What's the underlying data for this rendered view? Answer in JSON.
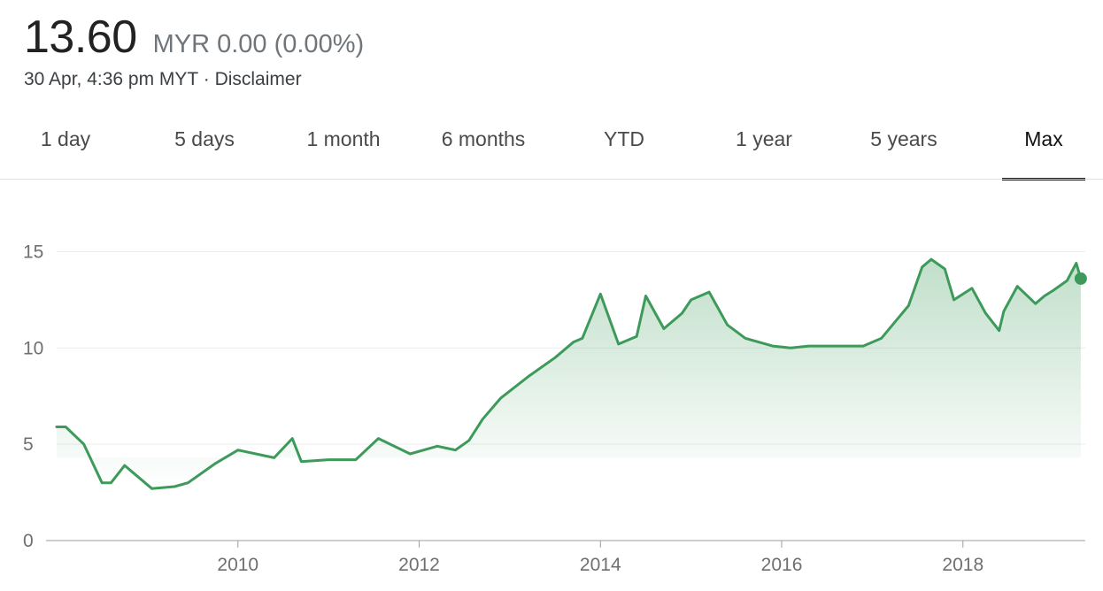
{
  "quote": {
    "price": "13.60",
    "currency": "MYR",
    "change": "0.00 (0.00%)",
    "timestamp": "30 Apr, 4:36 pm MYT · ",
    "disclaimer": "Disclaimer"
  },
  "tabs": [
    {
      "label": "1 day",
      "active": false
    },
    {
      "label": "5 days",
      "active": false
    },
    {
      "label": "1 month",
      "active": false
    },
    {
      "label": "6 months",
      "active": false
    },
    {
      "label": "YTD",
      "active": false
    },
    {
      "label": "1 year",
      "active": false
    },
    {
      "label": "5 years",
      "active": false
    },
    {
      "label": "Max",
      "active": true
    }
  ],
  "colors": {
    "line": "#3d9a5a",
    "area": "#3d9a5a",
    "grid": "#ececec",
    "axis": "#9e9e9e"
  },
  "chart_data": {
    "type": "area",
    "title": "",
    "xlabel": "",
    "ylabel": "",
    "x_ticks": [
      "2010",
      "2012",
      "2014",
      "2016",
      "2018"
    ],
    "y_ticks": [
      "0",
      "5",
      "10",
      "15"
    ],
    "xlim": [
      2008.0,
      2019.35
    ],
    "ylim": [
      0,
      17.5
    ],
    "grid": true,
    "series": [
      {
        "x": [
          2008.0,
          2008.1,
          2008.3,
          2008.5,
          2008.6,
          2008.75,
          2008.85,
          2009.05,
          2009.3,
          2009.45,
          2009.75,
          2010.0,
          2010.4,
          2010.6,
          2010.7,
          2011.0,
          2011.3,
          2011.55,
          2011.9,
          2012.2,
          2012.3,
          2012.4,
          2012.55,
          2012.7,
          2012.9,
          2013.2,
          2013.5,
          2013.7,
          2013.8,
          2014.0,
          2014.2,
          2014.4,
          2014.5,
          2014.7,
          2014.9,
          2015.0,
          2015.2,
          2015.4,
          2015.6,
          2015.9,
          2016.1,
          2016.3,
          2016.6,
          2016.9,
          2017.1,
          2017.4,
          2017.55,
          2017.65,
          2017.8,
          2017.9,
          2018.1,
          2018.25,
          2018.4,
          2018.45,
          2018.6,
          2018.8,
          2018.9,
          2019.0,
          2019.15,
          2019.25,
          2019.3
        ],
        "y": [
          5.9,
          5.9,
          5.0,
          3.0,
          3.0,
          3.9,
          3.5,
          2.7,
          2.8,
          3.0,
          4.0,
          4.7,
          4.3,
          5.3,
          4.1,
          4.2,
          4.2,
          5.3,
          4.5,
          4.9,
          4.8,
          4.7,
          5.2,
          6.3,
          7.4,
          8.5,
          9.5,
          10.3,
          10.5,
          12.8,
          10.2,
          10.6,
          12.7,
          11.0,
          11.8,
          12.5,
          12.9,
          11.2,
          10.5,
          10.1,
          10.0,
          10.1,
          10.1,
          10.1,
          10.5,
          12.2,
          14.2,
          14.6,
          14.1,
          12.5,
          13.1,
          11.8,
          10.9,
          11.9,
          13.2,
          12.3,
          12.7,
          13.0,
          13.5,
          14.4,
          13.6
        ]
      }
    ]
  }
}
